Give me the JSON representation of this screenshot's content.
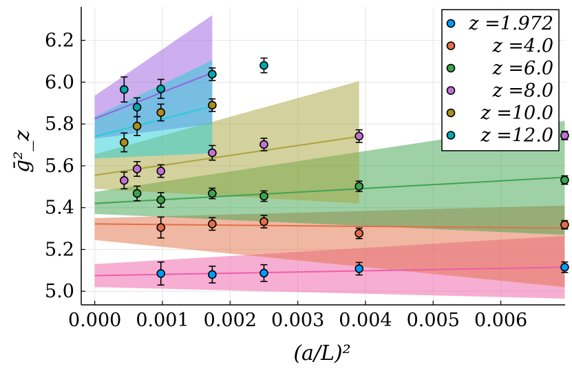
{
  "chart_data": {
    "type": "scatter",
    "xlabel": "(a/L)²",
    "ylabel": "ḡ²_z",
    "xlim": [
      -0.0002,
      0.00695
    ],
    "ylim": [
      4.935,
      6.36
    ],
    "xticks": [
      0.0,
      0.001,
      0.002,
      0.003,
      0.004,
      0.005,
      0.006
    ],
    "xtick_labels": [
      "0.000",
      "0.001",
      "0.002",
      "0.003",
      "0.004",
      "0.005",
      "0.006"
    ],
    "yticks": [
      5.0,
      5.2,
      5.4,
      5.6,
      5.8,
      6.0,
      6.2
    ],
    "ytick_labels": [
      "5.0",
      "5.2",
      "5.4",
      "5.6",
      "5.8",
      "6.0",
      "6.2"
    ],
    "grid": true,
    "legend_position": "top-right",
    "series": [
      {
        "name": "z =1.972",
        "color": "#009af9",
        "band_color": "#ef5da8",
        "points": [
          {
            "x": 0.000977,
            "y": 5.085,
            "err": 0.055
          },
          {
            "x": 0.001736,
            "y": 5.08,
            "err": 0.04
          },
          {
            "x": 0.0025,
            "y": 5.087,
            "err": 0.04
          },
          {
            "x": 0.003906,
            "y": 5.108,
            "err": 0.03
          },
          {
            "x": 0.006944,
            "y": 5.115,
            "err": 0.025
          }
        ],
        "fit": {
          "x0": 0.0,
          "y0": 5.075,
          "x1": 0.006944,
          "y1": 5.115
        },
        "band": {
          "x0": 0.0,
          "lo0": 5.02,
          "hi0": 5.13,
          "x1": 0.006944,
          "lo1": 4.965,
          "hi1": 5.265
        }
      },
      {
        "name": "z =4.0",
        "color": "#e26f46",
        "band_color": "#e26f46",
        "points": [
          {
            "x": 0.000977,
            "y": 5.305,
            "err": 0.05
          },
          {
            "x": 0.001736,
            "y": 5.322,
            "err": 0.03
          },
          {
            "x": 0.0025,
            "y": 5.333,
            "err": 0.03
          },
          {
            "x": 0.003906,
            "y": 5.277,
            "err": 0.025
          },
          {
            "x": 0.006944,
            "y": 5.318,
            "err": 0.02
          }
        ],
        "fit": {
          "x0": 0.0,
          "y0": 5.322,
          "x1": 0.006944,
          "y1": 5.302
        },
        "band": {
          "x0": 0.0,
          "lo0": 5.245,
          "hi0": 5.35,
          "x1": 0.006944,
          "lo1": 5.02,
          "hi1": 5.41
        }
      },
      {
        "name": "z =6.0",
        "color": "#3da44d",
        "band_color": "#3da44d",
        "points": [
          {
            "x": 0.000625,
            "y": 5.468,
            "err": 0.035
          },
          {
            "x": 0.000977,
            "y": 5.437,
            "err": 0.035
          },
          {
            "x": 0.001736,
            "y": 5.468,
            "err": 0.025
          },
          {
            "x": 0.0025,
            "y": 5.455,
            "err": 0.025
          },
          {
            "x": 0.003906,
            "y": 5.502,
            "err": 0.025
          },
          {
            "x": 0.006944,
            "y": 5.532,
            "err": 0.02
          }
        ],
        "fit": {
          "x0": 0.0,
          "y0": 5.42,
          "x1": 0.006944,
          "y1": 5.545
        },
        "band": {
          "x0": 0.0,
          "lo0": 5.37,
          "hi0": 5.475,
          "x1": 0.006944,
          "lo1": 5.27,
          "hi1": 5.815
        }
      },
      {
        "name": "z =8.0",
        "color": "#c271d2",
        "band_color": "#9b5fe0",
        "points": [
          {
            "x": 0.000434,
            "y": 5.53,
            "err": 0.04
          },
          {
            "x": 0.000625,
            "y": 5.585,
            "err": 0.035
          },
          {
            "x": 0.000977,
            "y": 5.575,
            "err": 0.03
          },
          {
            "x": 0.001736,
            "y": 5.662,
            "err": 0.035
          },
          {
            "x": 0.0025,
            "y": 5.702,
            "err": 0.03
          },
          {
            "x": 0.003906,
            "y": 5.742,
            "err": 0.03
          },
          {
            "x": 0.006944,
            "y": 5.745,
            "err": 0.02
          }
        ],
        "fit": {
          "x0": 0.0,
          "y0": 5.825,
          "x1": 0.001736,
          "y1": 6.045
        },
        "band": {
          "x0": 0.0,
          "lo0": 5.73,
          "hi0": 5.935,
          "x1": 0.001736,
          "lo1": 5.8,
          "hi1": 6.32
        }
      },
      {
        "name": "z =10.0",
        "color": "#ac8d18",
        "band_color": "#a8a43c",
        "points": [
          {
            "x": 0.000434,
            "y": 5.712,
            "err": 0.045
          },
          {
            "x": 0.000625,
            "y": 5.79,
            "err": 0.045
          },
          {
            "x": 0.000977,
            "y": 5.855,
            "err": 0.04
          },
          {
            "x": 0.001736,
            "y": 5.89,
            "err": 0.03
          }
        ],
        "fit": {
          "x0": 0.0,
          "y0": 5.555,
          "x1": 0.003906,
          "y1": 5.74
        },
        "band": {
          "x0": 0.0,
          "lo0": 5.49,
          "hi0": 5.655,
          "x1": 0.003906,
          "lo1": 5.42,
          "hi1": 6.005
        }
      },
      {
        "name": "z =12.0",
        "color": "#00a9ad",
        "band_color": "#22ced6",
        "points": [
          {
            "x": 0.000434,
            "y": 5.965,
            "err": 0.06
          },
          {
            "x": 0.000625,
            "y": 5.88,
            "err": 0.045
          },
          {
            "x": 0.000977,
            "y": 5.968,
            "err": 0.045
          },
          {
            "x": 0.001736,
            "y": 6.038,
            "err": 0.03
          },
          {
            "x": 0.0025,
            "y": 6.08,
            "err": 0.035
          }
        ],
        "fit": {
          "x0": 0.0,
          "y0": 5.74,
          "x1": 0.001736,
          "y1": 5.885
        },
        "band": {
          "x0": 0.0,
          "lo0": 5.635,
          "hi0": 5.835,
          "x1": 0.001736,
          "lo1": 5.66,
          "hi1": 6.105
        }
      }
    ]
  }
}
